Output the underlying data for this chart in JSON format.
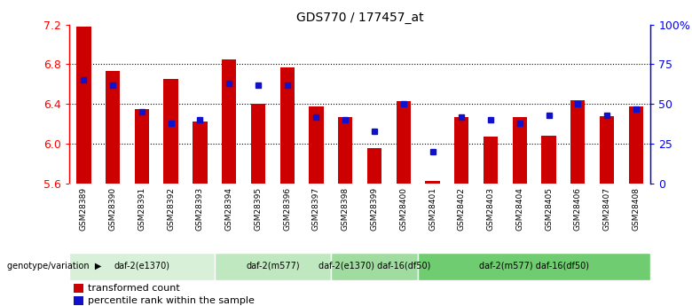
{
  "title": "GDS770 / 177457_at",
  "categories": [
    "GSM28389",
    "GSM28390",
    "GSM28391",
    "GSM28392",
    "GSM28393",
    "GSM28394",
    "GSM28395",
    "GSM28396",
    "GSM28397",
    "GSM28398",
    "GSM28399",
    "GSM28400",
    "GSM28401",
    "GSM28402",
    "GSM28403",
    "GSM28404",
    "GSM28405",
    "GSM28406",
    "GSM28407",
    "GSM28408"
  ],
  "bar_values": [
    7.18,
    6.73,
    6.35,
    6.65,
    6.22,
    6.85,
    6.4,
    6.77,
    6.38,
    6.27,
    5.96,
    6.43,
    5.63,
    6.27,
    6.07,
    6.27,
    6.08,
    6.44,
    6.28,
    6.38
  ],
  "percentile_values": [
    65,
    62,
    45,
    38,
    40,
    63,
    62,
    62,
    42,
    40,
    33,
    50,
    20,
    42,
    40,
    38,
    43,
    50,
    43,
    47
  ],
  "ymin": 5.6,
  "ymax": 7.2,
  "yticks": [
    5.6,
    6.0,
    6.4,
    6.8,
    7.2
  ],
  "right_yticks": [
    0,
    25,
    50,
    75,
    100
  ],
  "right_ytick_labels": [
    "0",
    "25",
    "50",
    "75",
    "100%"
  ],
  "bar_color": "#cc0000",
  "dot_color": "#1111cc",
  "background_color": "#ffffff",
  "group_labels": [
    "daf-2(e1370)",
    "daf-2(m577)",
    "daf-2(e1370) daf-16(df50)",
    "daf-2(m577) daf-16(df50)"
  ],
  "group_ranges": [
    [
      0,
      5
    ],
    [
      5,
      9
    ],
    [
      9,
      12
    ],
    [
      12,
      20
    ]
  ],
  "group_colors": [
    "#d8efd8",
    "#c0e8c0",
    "#a0dba0",
    "#70cc70"
  ],
  "xtick_bg": "#d0d0d0",
  "genotype_label": "genotype/variation",
  "legend_bar_label": "transformed count",
  "legend_dot_label": "percentile rank within the sample"
}
